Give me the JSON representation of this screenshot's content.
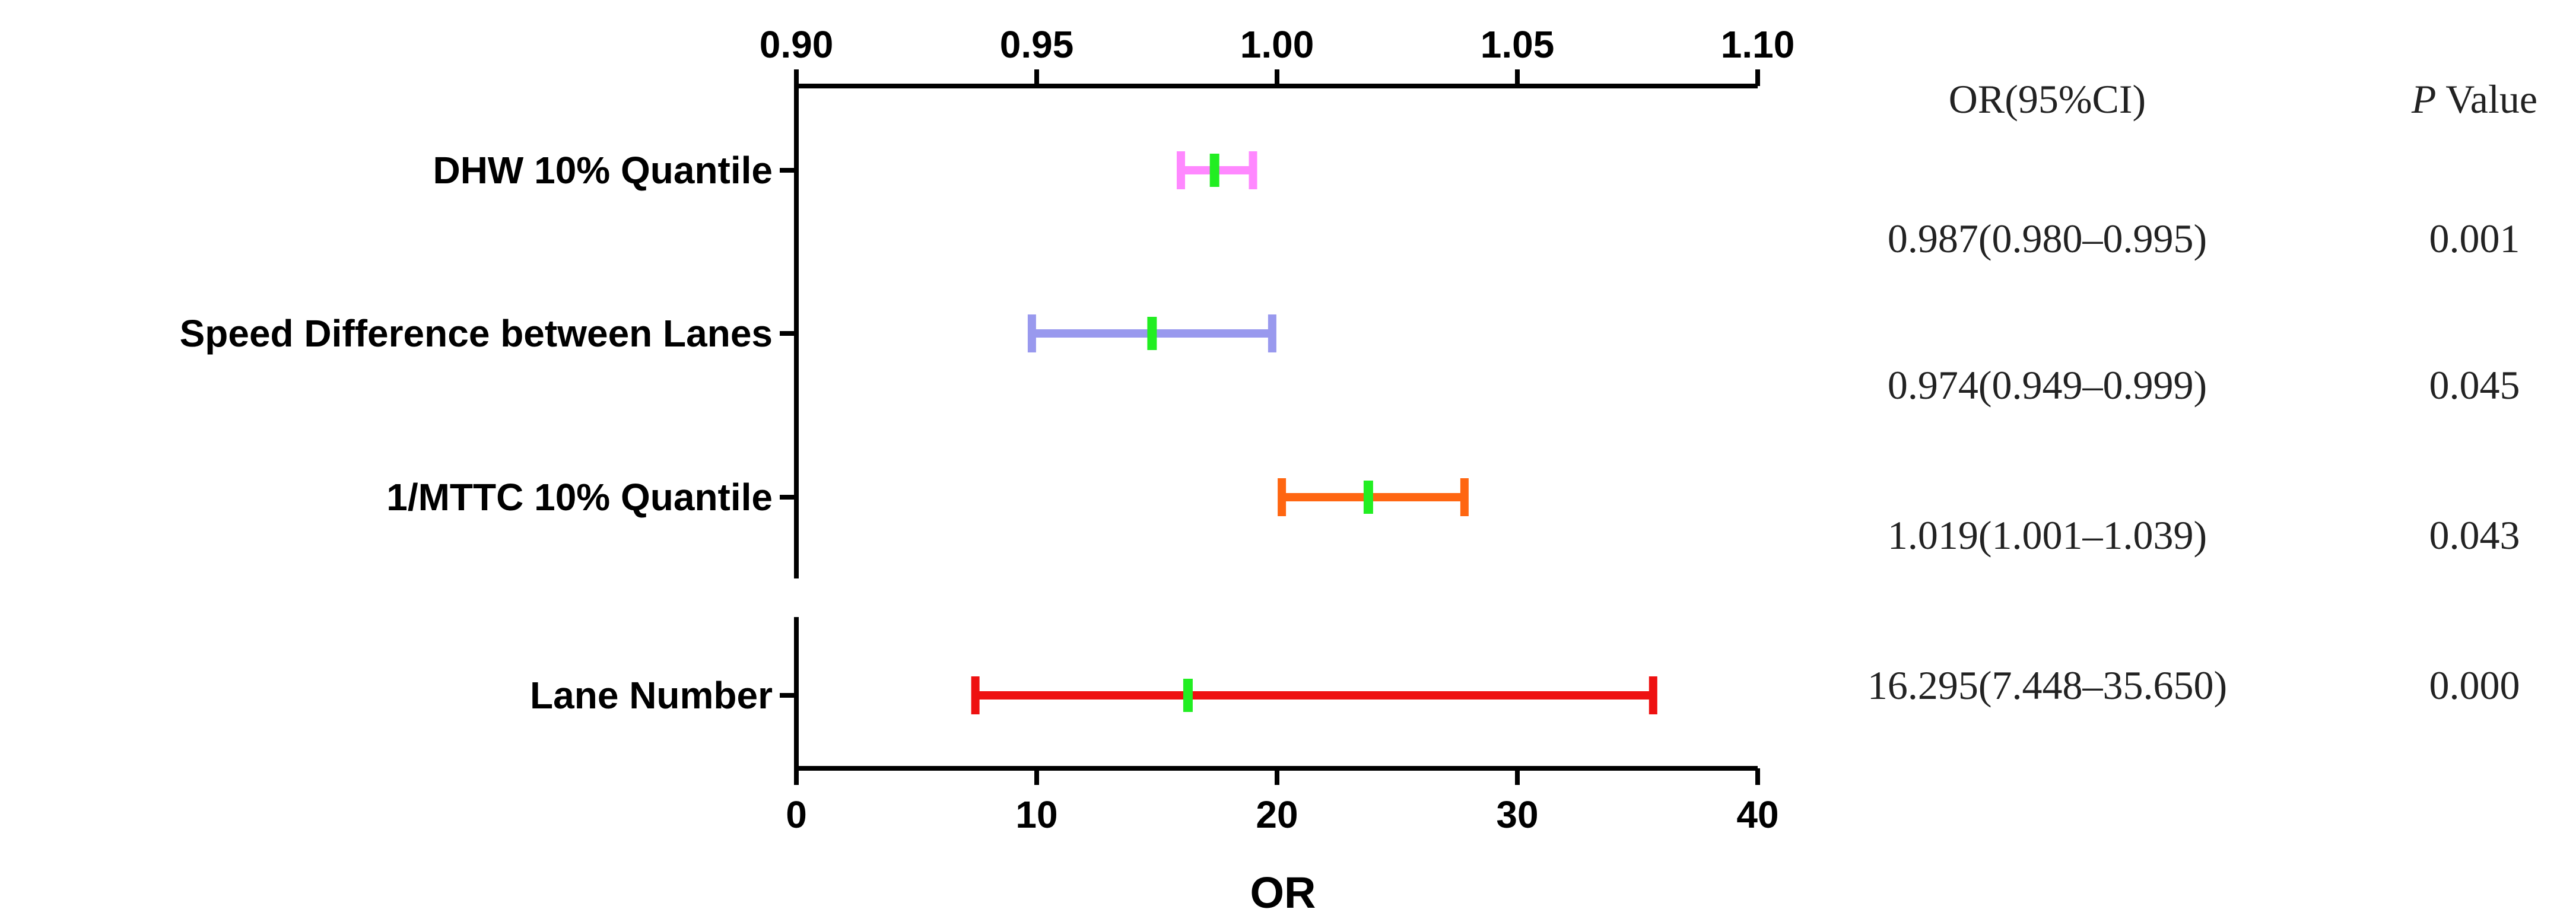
{
  "chart_data": {
    "type": "forest",
    "xlabel": "OR",
    "top_axis": {
      "range": [
        0.9,
        1.1
      ],
      "tick_labels": [
        "0.90",
        "0.95",
        "1.00",
        "1.05",
        "1.10"
      ]
    },
    "bottom_axis": {
      "range": [
        0,
        40
      ],
      "tick_labels": [
        "0",
        "10",
        "20",
        "30",
        "40"
      ]
    },
    "table_headers": {
      "or_ci": "OR(95%CI)",
      "p_prefix": "P",
      "p_suffix": " Value"
    },
    "rows": [
      {
        "label": "DHW 10% Quantile",
        "axis": "top",
        "or": 0.987,
        "lower": 0.98,
        "upper": 0.995,
        "color": "#ff88ff",
        "or_ci_text": "0.987(0.980–0.995)",
        "p_text": "0.001"
      },
      {
        "label": "Speed Difference between Lanes",
        "axis": "top",
        "or": 0.974,
        "lower": 0.949,
        "upper": 0.999,
        "color": "#9999ee",
        "or_ci_text": "0.974(0.949–0.999)",
        "p_text": "0.045"
      },
      {
        "label": "1/MTTC 10% Quantile",
        "axis": "top",
        "or": 1.019,
        "lower": 1.001,
        "upper": 1.039,
        "color": "#ff6611",
        "or_ci_text": "1.019(1.001–1.039)",
        "p_text": "0.043"
      },
      {
        "label": "Lane Number",
        "axis": "bottom",
        "or": 16.295,
        "lower": 7.448,
        "upper": 35.65,
        "color": "#ee1111",
        "or_ci_text": "16.295(7.448–35.650)",
        "p_text": "0.000"
      }
    ],
    "point_marker_color": "#22ee22"
  }
}
